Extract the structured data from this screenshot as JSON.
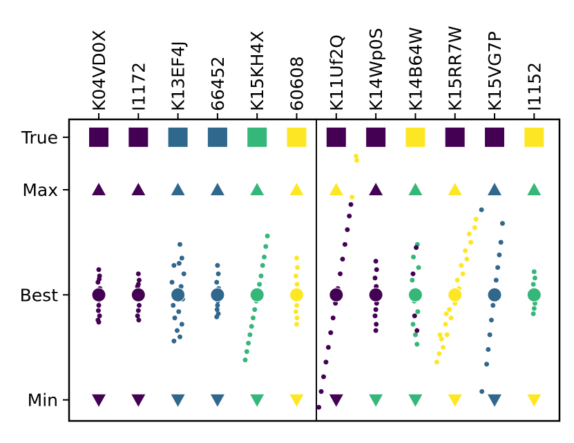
{
  "chart_data": {
    "type": "strip",
    "categories": [
      "K04VD0X",
      "I1172",
      "K13EF4J",
      "66452",
      "K15KH4X",
      "60608",
      "K11Uf2Q",
      "K14Wp0S",
      "K14B64W",
      "K15RR7W",
      "K15VG7P",
      "I1152"
    ],
    "ylim": [
      -0.2,
      2.67
    ],
    "yticks": [
      {
        "value": 0,
        "label": "Min"
      },
      {
        "value": 1,
        "label": "Best"
      },
      {
        "value": 2,
        "label": "Max"
      },
      {
        "value": 2.5,
        "label": "True"
      }
    ],
    "true_colors": [
      "#440154",
      "#440154",
      "#30678d",
      "#30678d",
      "#35b779",
      "#fde725",
      "#440154",
      "#440154",
      "#fde725",
      "#440154",
      "#440154",
      "#fde725"
    ],
    "max_colors": [
      "#440154",
      "#440154",
      "#30678d",
      "#30678d",
      "#35b779",
      "#fde725",
      "#fde725",
      "#440154",
      "#35b779",
      "#fde725",
      "#30678d",
      "#35b779"
    ],
    "best_colors": [
      "#440154",
      "#440154",
      "#30678d",
      "#30678d",
      "#35b779",
      "#fde725",
      "#440154",
      "#440154",
      "#35b779",
      "#fde725",
      "#30678d",
      "#35b779"
    ],
    "min_colors": [
      "#440154",
      "#440154",
      "#30678d",
      "#30678d",
      "#35b779",
      "#fde725",
      "#440154",
      "#35b779",
      "#35b779",
      "#fde725",
      "#30678d",
      "#fde725"
    ],
    "clouds": [
      [
        {
          "color": "#440154",
          "dx": [
            0,
            0.02,
            -0.02,
            0.03,
            -0.03,
            0.01,
            0,
            -0.01,
            0.02,
            -0.02,
            0.01,
            0
          ],
          "y": [
            1.24,
            1.18,
            1.12,
            1.06,
            1.0,
            0.95,
            0.9,
            0.85,
            0.8,
            0.76,
            1.15,
            0.74
          ]
        }
      ],
      [
        {
          "color": "#440154",
          "dx": [
            0,
            0.02,
            -0.02,
            0.01,
            -0.01,
            0.02,
            0,
            -0.02,
            0.01,
            0
          ],
          "y": [
            1.2,
            1.14,
            1.08,
            1.02,
            0.96,
            0.9,
            0.85,
            0.8,
            0.76,
            1.1
          ]
        }
      ],
      [
        {
          "color": "#30678d",
          "dx": [
            0.05,
            0.1,
            -0.1,
            0.15,
            -0.15,
            0.08,
            -0.05,
            0.12,
            -0.12,
            0.02,
            -0.08,
            0.1,
            -0.02,
            0.05,
            -0.1,
            0.03
          ],
          "y": [
            1.48,
            1.35,
            1.28,
            1.2,
            1.12,
            1.08,
            1.02,
            0.96,
            0.9,
            0.84,
            0.78,
            0.72,
            0.66,
            0.6,
            0.56,
            1.3
          ]
        }
      ],
      [
        {
          "color": "#30678d",
          "dx": [
            0,
            0.02,
            -0.02,
            0.03,
            -0.03,
            0.01,
            0,
            -0.01,
            0.02,
            -0.02
          ],
          "y": [
            1.28,
            1.2,
            1.12,
            1.06,
            1.0,
            0.94,
            0.9,
            0.86,
            0.82,
            0.79
          ]
        }
      ],
      [
        {
          "color": "#35b779",
          "dx": [
            -0.3,
            -0.26,
            -0.22,
            -0.18,
            -0.14,
            -0.1,
            -0.06,
            -0.02,
            0.02,
            0.06,
            0.1,
            0.14,
            0.18,
            0.22,
            0.26
          ],
          "y": [
            0.38,
            0.46,
            0.54,
            0.62,
            0.7,
            0.78,
            0.86,
            0.94,
            1.02,
            1.1,
            1.18,
            1.28,
            1.36,
            1.46,
            1.56
          ]
        }
      ],
      [
        {
          "color": "#fde725",
          "dx": [
            0,
            0.02,
            -0.02,
            0.01,
            -0.01,
            0.02,
            0,
            -0.02,
            0.01,
            0
          ],
          "y": [
            1.35,
            1.26,
            1.18,
            1.1,
            1.02,
            0.96,
            0.9,
            0.84,
            0.78,
            0.72
          ]
        }
      ],
      [
        {
          "color": "#440154",
          "dx": [
            -0.44,
            -0.38,
            -0.32,
            -0.26,
            -0.2,
            -0.14,
            -0.08,
            -0.02,
            0.04,
            0.1,
            0.16,
            0.22,
            0.28,
            0.33,
            0.37
          ],
          "y": [
            -0.07,
            0.08,
            0.22,
            0.36,
            0.5,
            0.64,
            0.78,
            0.92,
            1.06,
            1.2,
            1.34,
            1.48,
            1.62,
            1.75,
            1.86
          ]
        }
      ],
      [
        {
          "color": "#fde725",
          "dx": [
            -0.5,
            -0.48,
            -0.6
          ],
          "y": [
            2.32,
            2.28,
            1.93
          ]
        },
        {
          "color": "#440154",
          "dx": [
            0,
            0.02,
            -0.02,
            0.01,
            -0.01,
            0.02,
            0,
            -0.02,
            0.01,
            0
          ],
          "y": [
            1.32,
            1.24,
            1.16,
            1.08,
            1.0,
            0.92,
            0.86,
            0.8,
            0.72,
            0.66
          ]
        }
      ],
      [
        {
          "color": "#35b779",
          "dx": [
            0.05,
            -0.05,
            0.08,
            -0.08,
            0.03,
            -0.03,
            0.06,
            -0.06,
            0,
            0.04
          ],
          "y": [
            1.48,
            1.36,
            1.26,
            1.14,
            1.04,
            0.94,
            0.84,
            0.72,
            0.62,
            0.53
          ]
        },
        {
          "color": "#440154",
          "dx": [
            0.02,
            -0.06,
            0.06,
            -0.02,
            0.04
          ],
          "y": [
            1.45,
            1.2,
            0.98,
            0.8,
            0.66
          ]
        }
      ],
      [
        {
          "color": "#fde725",
          "dx": [
            -0.46,
            -0.4,
            -0.3,
            -0.34,
            -0.2,
            -0.24,
            -0.1,
            -0.14,
            0,
            -0.04,
            0.1,
            0.06,
            0.2,
            0.16,
            0.3,
            0.26,
            0.4,
            0.36,
            0.5,
            0.53,
            -0.38,
            -0.22
          ],
          "y": [
            0.36,
            0.44,
            0.5,
            0.58,
            0.62,
            0.72,
            0.78,
            0.86,
            0.92,
            1.0,
            1.06,
            1.14,
            1.2,
            1.28,
            1.34,
            1.42,
            1.5,
            1.58,
            1.64,
            1.72,
            0.62,
            0.82
          ]
        }
      ],
      [
        {
          "color": "#30678d",
          "dx": [
            -0.32,
            -0.2,
            -0.16,
            -0.12,
            -0.08,
            -0.04,
            0,
            0.04,
            0.08,
            0.12,
            0.16,
            0.2,
            -0.33
          ],
          "y": [
            0.08,
            0.34,
            0.48,
            0.62,
            0.76,
            0.9,
            1.02,
            1.14,
            1.26,
            1.38,
            1.5,
            1.68,
            1.81
          ]
        }
      ],
      [
        {
          "color": "#35b779",
          "dx": [
            0,
            0.02,
            -0.02,
            0.01,
            -0.01,
            0.02,
            0,
            -0.02
          ],
          "y": [
            1.22,
            1.16,
            1.1,
            1.04,
            0.98,
            0.92,
            0.87,
            0.82
          ]
        }
      ]
    ]
  }
}
